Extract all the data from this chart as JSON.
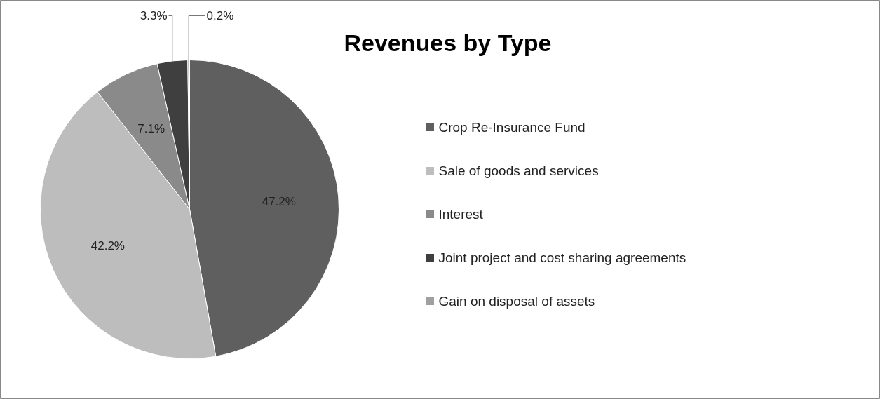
{
  "chart_data": {
    "type": "pie",
    "title": "Revenues by Type",
    "categories": [
      "Crop Re-Insurance Fund",
      "Sale of goods and services",
      "Interest",
      "Joint project and cost sharing agreements",
      "Gain on disposal of assets"
    ],
    "values": [
      47.2,
      42.2,
      7.1,
      3.3,
      0.2
    ],
    "colors": [
      "#5f5f5f",
      "#bdbdbd",
      "#8a8a8a",
      "#3f3f3f",
      "#a0a0a0"
    ],
    "value_labels": [
      "47.2%",
      "42.2%",
      "7.1%",
      "3.3%",
      "0.2%"
    ],
    "legend": "right"
  }
}
